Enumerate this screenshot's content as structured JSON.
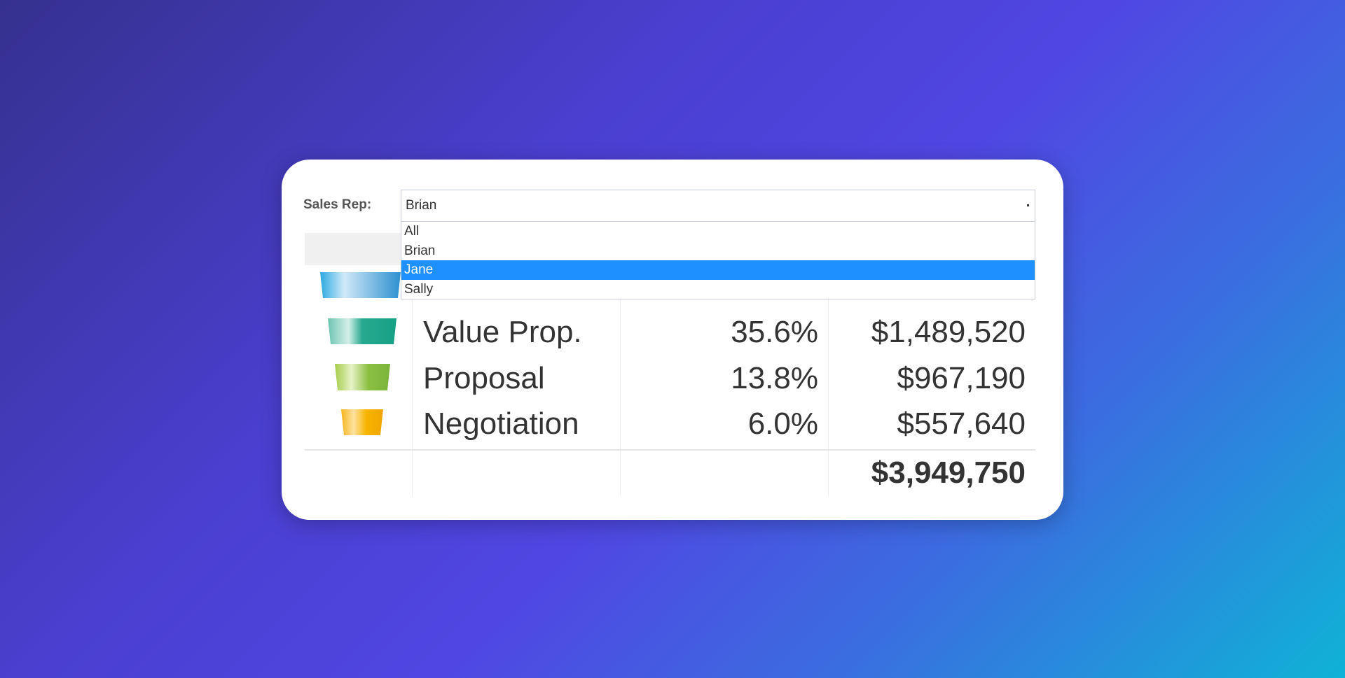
{
  "filter": {
    "label": "Sales Rep:",
    "selected": "Brian",
    "options": [
      "All",
      "Brian",
      "Jane",
      "Sally"
    ]
  },
  "table": {
    "rows": [
      [
        "Value Prop.",
        "35.6%",
        "$1,489,520"
      ],
      [
        "Proposal",
        "13.8%",
        "$967,190"
      ],
      [
        "Negotiation",
        "6.0%",
        "$557,640"
      ]
    ],
    "total": "$3,949,750"
  }
}
